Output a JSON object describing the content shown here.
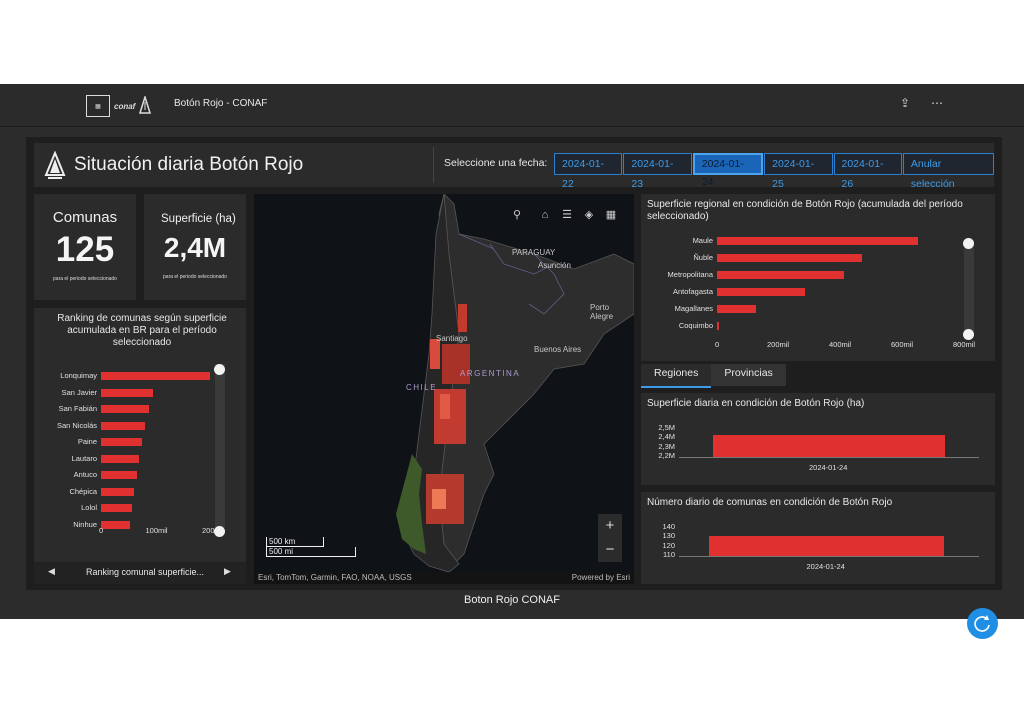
{
  "app": {
    "title": "Botón Rojo - CONAF",
    "footer": "Boton Rojo CONAF"
  },
  "logos": {
    "conaf": "conaf"
  },
  "header": {
    "title": "Situación diaria Botón Rojo",
    "date_label": "Seleccione una fecha:",
    "dates": [
      "2024-01-22",
      "2024-01-23",
      "2024-01-24",
      "2024-01-25",
      "2024-01-26"
    ],
    "selected_date": "2024-01-24",
    "clear_label": "Anular selección"
  },
  "kpi": {
    "comunas_title": "Comunas",
    "comunas_value": "125",
    "comunas_sub": "para el periodo seleccionado",
    "superficie_title": "Superficie (ha)",
    "superficie_value": "2,4M",
    "superficie_sub": "para el periodo seleccionado"
  },
  "ranking": {
    "title": "Ranking de comunas según superficie acumulada en BR para el período seleccionado",
    "nav_label": "Ranking comunal superficie...",
    "ticks": [
      "0",
      "100mil",
      "200mil"
    ]
  },
  "map": {
    "labels": {
      "paraguay": "PARAGUAY",
      "asuncion": "Asunción",
      "porto": "Porto Alegre",
      "buenos_aires": "Buenos Aires",
      "argentina": "ARGENTINA",
      "chile": "CHILE",
      "santiago": "Santiago"
    },
    "scale_km": "500 km",
    "scale_mi": "500 mi",
    "attribution": "Esri, TomTom, Garmin, FAO, NOAA, USGS",
    "powered": "Powered by Esri"
  },
  "regional": {
    "title": "Superficie regional en condición de Botón Rojo (acumulada del período seleccionado)",
    "ticks": [
      "0",
      "200mil",
      "400mil",
      "600mil",
      "800mil"
    ]
  },
  "tabs": [
    "Regiones",
    "Provincias"
  ],
  "daily_area": {
    "title": "Superficie diaria en condición de Botón Rojo (ha)",
    "yticks": [
      "2,5M",
      "2,4M",
      "2,3M",
      "2,2M"
    ],
    "xlabel_date": "2024-01-24"
  },
  "daily_count": {
    "title": "Número diario de comunas en condición de Botón Rojo",
    "yticks": [
      "140",
      "130",
      "120",
      "110"
    ],
    "xlabel_date": "2024-01-24"
  },
  "colors": {
    "accent": "#1f8fe6",
    "bar": "#e03030",
    "panel": "#2b2b2b"
  },
  "chart_data": [
    {
      "type": "bar",
      "orientation": "horizontal",
      "categories": [
        "Lonquimay",
        "San Javier",
        "San Fabián",
        "San Nicolás",
        "Paine",
        "Lautaro",
        "Antuco",
        "Chépica",
        "Lolol",
        "Ninhue"
      ],
      "values": [
        205000,
        98000,
        90000,
        83000,
        78000,
        72000,
        67000,
        62000,
        58000,
        55000
      ],
      "xlim": [
        0,
        220000
      ]
    },
    {
      "type": "bar",
      "orientation": "horizontal",
      "categories": [
        "Maule",
        "Ñuble",
        "Metropolitana",
        "Antofagasta",
        "Magallanes",
        "Coquimbo"
      ],
      "values": [
        665000,
        480000,
        420000,
        290000,
        130000,
        5000
      ],
      "xlim": [
        0,
        820000
      ]
    },
    {
      "type": "bar",
      "categories": [
        "2024-01-24"
      ],
      "values": [
        2400000
      ],
      "ylim": [
        2150000,
        2550000
      ]
    },
    {
      "type": "bar",
      "categories": [
        "2024-01-24"
      ],
      "values": [
        125
      ],
      "ylim": [
        108,
        142
      ]
    }
  ]
}
